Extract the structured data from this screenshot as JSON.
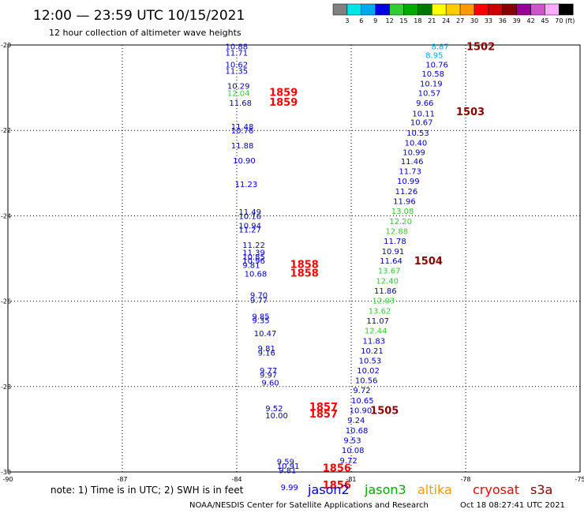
{
  "header": {
    "title": "12:00 — 23:59 UTC 10/15/2021",
    "subtitle": "12 hour collection of altimeter wave heights"
  },
  "colorbar": {
    "labels": [
      "3",
      "6",
      "9",
      "12",
      "15",
      "18",
      "21",
      "24",
      "27",
      "30",
      "33",
      "36",
      "39",
      "42",
      "45",
      "70"
    ],
    "unit": "(ft)",
    "colors": [
      "#808080",
      "#00e5e5",
      "#00a8f0",
      "#0000e0",
      "#33cc33",
      "#00aa00",
      "#007700",
      "#ffff00",
      "#ffcc00",
      "#ff9900",
      "#ff0000",
      "#cc0000",
      "#880000",
      "#990099",
      "#cc55cc",
      "#ffaaff",
      "#000000"
    ]
  },
  "footer": {
    "note": "note:  1) Time is in UTC;  2) SWH is in feet",
    "satellites": [
      {
        "name": "jason2",
        "color": "#0000cc"
      },
      {
        "name": "jason3",
        "color": "#00aa00"
      },
      {
        "name": "altika",
        "color": "#ff9900"
      },
      {
        "name": "cryosat",
        "color": "#ff0000"
      },
      {
        "name": "s3a",
        "color": "#880000"
      }
    ],
    "credit": "NOAA/NESDIS Center for Satellite Applications and Research",
    "timestamp": "Oct 18 08:27:41 UTC 2021"
  },
  "chart_data": {
    "type": "scatter",
    "xlim": [
      -90,
      -75
    ],
    "ylim": [
      -30,
      -20
    ],
    "xticks": [
      "-90",
      "-87",
      "-84",
      "-81",
      "-78",
      "-75"
    ],
    "yticks": [
      "-20",
      "-22",
      "-24",
      "-26",
      "-28",
      "-30"
    ],
    "grid": true,
    "colors": {
      "blue": "#0000cc",
      "green": "#33cc33",
      "cyan": "#00aaee",
      "red": "#ff0000",
      "maroon": "#880000"
    },
    "points": [
      {
        "lon": -84.3,
        "lat": -20.03,
        "v": "10.88",
        "c": "blue"
      },
      {
        "lon": -84.3,
        "lat": -20.18,
        "v": "11.71",
        "c": "blue"
      },
      {
        "lon": -84.3,
        "lat": -20.45,
        "v": "10.62",
        "c": "blue"
      },
      {
        "lon": -84.3,
        "lat": -20.6,
        "v": "11.35",
        "c": "blue"
      },
      {
        "lon": -84.25,
        "lat": -20.95,
        "v": "10.29",
        "c": "blue"
      },
      {
        "lon": -84.25,
        "lat": -21.12,
        "v": "12.04",
        "c": "green"
      },
      {
        "lon": -84.2,
        "lat": -21.35,
        "v": "11.68",
        "c": "blue"
      },
      {
        "lon": -84.15,
        "lat": -21.9,
        "v": "11.48",
        "c": "blue"
      },
      {
        "lon": -84.15,
        "lat": -22.0,
        "v": "10.76",
        "c": "blue"
      },
      {
        "lon": -84.15,
        "lat": -22.35,
        "v": "11.88",
        "c": "blue"
      },
      {
        "lon": -84.1,
        "lat": -22.7,
        "v": "10.90",
        "c": "blue"
      },
      {
        "lon": -84.05,
        "lat": -23.25,
        "v": "11.23",
        "c": "blue"
      },
      {
        "lon": -83.95,
        "lat": -23.9,
        "v": "11.49",
        "c": "blue"
      },
      {
        "lon": -83.95,
        "lat": -24.0,
        "v": "10.16",
        "c": "blue"
      },
      {
        "lon": -83.95,
        "lat": -24.22,
        "v": "10.94",
        "c": "blue"
      },
      {
        "lon": -83.95,
        "lat": -24.32,
        "v": "11.27",
        "c": "blue"
      },
      {
        "lon": -83.85,
        "lat": -24.68,
        "v": "11.22",
        "c": "blue"
      },
      {
        "lon": -83.85,
        "lat": -24.85,
        "v": "11.39",
        "c": "blue"
      },
      {
        "lon": -83.85,
        "lat": -24.95,
        "v": "10.85",
        "c": "blue"
      },
      {
        "lon": -83.85,
        "lat": -25.05,
        "v": "10.96",
        "c": "blue"
      },
      {
        "lon": -83.85,
        "lat": -25.15,
        "v": "9.81",
        "c": "blue"
      },
      {
        "lon": -83.8,
        "lat": -25.35,
        "v": "10.68",
        "c": "blue"
      },
      {
        "lon": -83.65,
        "lat": -25.85,
        "v": "9.70",
        "c": "blue"
      },
      {
        "lon": -83.65,
        "lat": -25.97,
        "v": "9.77",
        "c": "blue"
      },
      {
        "lon": -83.6,
        "lat": -26.35,
        "v": "9.85",
        "c": "blue"
      },
      {
        "lon": -83.6,
        "lat": -26.44,
        "v": "9.35",
        "c": "blue"
      },
      {
        "lon": -83.55,
        "lat": -26.75,
        "v": "10.47",
        "c": "blue"
      },
      {
        "lon": -83.45,
        "lat": -27.1,
        "v": "9.81",
        "c": "blue"
      },
      {
        "lon": -83.45,
        "lat": -27.2,
        "v": "9.16",
        "c": "blue"
      },
      {
        "lon": -83.4,
        "lat": -27.62,
        "v": "9.77",
        "c": "blue"
      },
      {
        "lon": -83.4,
        "lat": -27.72,
        "v": "9.97",
        "c": "blue"
      },
      {
        "lon": -83.35,
        "lat": -27.9,
        "v": "9.60",
        "c": "blue"
      },
      {
        "lon": -83.25,
        "lat": -28.5,
        "v": "9.52",
        "c": "blue"
      },
      {
        "lon": -83.25,
        "lat": -28.67,
        "v": "10.00",
        "c": "blue"
      },
      {
        "lon": -82.95,
        "lat": -29.75,
        "v": "9.59",
        "c": "blue"
      },
      {
        "lon": -82.95,
        "lat": -29.85,
        "v": "10.91",
        "c": "blue"
      },
      {
        "lon": -82.9,
        "lat": -29.95,
        "v": "9.81",
        "c": "blue"
      },
      {
        "lon": -82.85,
        "lat": -30.35,
        "v": "9.99",
        "c": "blue"
      },
      {
        "lon": -78.9,
        "lat": -20.03,
        "v": "8.87",
        "c": "cyan"
      },
      {
        "lon": -79.05,
        "lat": -20.23,
        "v": "8.95",
        "c": "cyan"
      },
      {
        "lon": -79.05,
        "lat": -20.45,
        "v": "10.76",
        "c": "blue"
      },
      {
        "lon": -79.15,
        "lat": -20.67,
        "v": "10.58",
        "c": "blue"
      },
      {
        "lon": -79.2,
        "lat": -20.9,
        "v": "10.19",
        "c": "blue"
      },
      {
        "lon": -79.25,
        "lat": -21.12,
        "v": "10.57",
        "c": "blue"
      },
      {
        "lon": -79.3,
        "lat": -21.35,
        "v": "9.66",
        "c": "blue"
      },
      {
        "lon": -79.4,
        "lat": -21.6,
        "v": "10.11",
        "c": "blue"
      },
      {
        "lon": -79.45,
        "lat": -21.8,
        "v": "10.67",
        "c": "blue"
      },
      {
        "lon": -79.55,
        "lat": -22.05,
        "v": "10.53",
        "c": "blue"
      },
      {
        "lon": -79.6,
        "lat": -22.28,
        "v": "10.40",
        "c": "blue"
      },
      {
        "lon": -79.65,
        "lat": -22.5,
        "v": "10.99",
        "c": "blue"
      },
      {
        "lon": -79.7,
        "lat": -22.72,
        "v": "11.46",
        "c": "blue"
      },
      {
        "lon": -79.75,
        "lat": -22.95,
        "v": "11.73",
        "c": "blue"
      },
      {
        "lon": -79.8,
        "lat": -23.18,
        "v": "10.99",
        "c": "blue"
      },
      {
        "lon": -79.85,
        "lat": -23.42,
        "v": "11.26",
        "c": "blue"
      },
      {
        "lon": -79.9,
        "lat": -23.65,
        "v": "11.96",
        "c": "blue"
      },
      {
        "lon": -79.95,
        "lat": -23.88,
        "v": "13.08",
        "c": "green"
      },
      {
        "lon": -80.0,
        "lat": -24.12,
        "v": "12.20",
        "c": "green"
      },
      {
        "lon": -80.1,
        "lat": -24.35,
        "v": "12.88",
        "c": "green"
      },
      {
        "lon": -80.15,
        "lat": -24.58,
        "v": "11.78",
        "c": "blue"
      },
      {
        "lon": -80.2,
        "lat": -24.82,
        "v": "10.91",
        "c": "blue"
      },
      {
        "lon": -80.25,
        "lat": -25.05,
        "v": "11.64",
        "c": "blue"
      },
      {
        "lon": -80.3,
        "lat": -25.28,
        "v": "13.67",
        "c": "green"
      },
      {
        "lon": -80.35,
        "lat": -25.52,
        "v": "12.40",
        "c": "green"
      },
      {
        "lon": -80.4,
        "lat": -25.75,
        "v": "11.86",
        "c": "blue"
      },
      {
        "lon": -80.45,
        "lat": -25.98,
        "v": "12.03",
        "c": "green"
      },
      {
        "lon": -80.55,
        "lat": -26.22,
        "v": "13.62",
        "c": "green"
      },
      {
        "lon": -80.6,
        "lat": -26.45,
        "v": "11.07",
        "c": "blue"
      },
      {
        "lon": -80.65,
        "lat": -26.68,
        "v": "12.44",
        "c": "green"
      },
      {
        "lon": -80.7,
        "lat": -26.92,
        "v": "11.83",
        "c": "blue"
      },
      {
        "lon": -80.75,
        "lat": -27.15,
        "v": "10.21",
        "c": "blue"
      },
      {
        "lon": -80.8,
        "lat": -27.38,
        "v": "10.53",
        "c": "blue"
      },
      {
        "lon": -80.85,
        "lat": -27.62,
        "v": "10.02",
        "c": "blue"
      },
      {
        "lon": -80.9,
        "lat": -27.85,
        "v": "10.56",
        "c": "blue"
      },
      {
        "lon": -80.95,
        "lat": -28.08,
        "v": "9.72",
        "c": "blue"
      },
      {
        "lon": -81.0,
        "lat": -28.32,
        "v": "10.65",
        "c": "blue"
      },
      {
        "lon": -81.05,
        "lat": -28.55,
        "v": "10.90",
        "c": "blue"
      },
      {
        "lon": -81.1,
        "lat": -28.78,
        "v": "9.24",
        "c": "blue"
      },
      {
        "lon": -81.15,
        "lat": -29.02,
        "v": "10.68",
        "c": "blue"
      },
      {
        "lon": -81.2,
        "lat": -29.25,
        "v": "9.53",
        "c": "blue"
      },
      {
        "lon": -81.25,
        "lat": -29.48,
        "v": "10.08",
        "c": "blue"
      },
      {
        "lon": -81.3,
        "lat": -29.72,
        "v": "9.72",
        "c": "blue"
      }
    ],
    "pass_labels": [
      {
        "lon": -83.15,
        "lat": -21.1,
        "v": "1859",
        "c": "red"
      },
      {
        "lon": -83.15,
        "lat": -21.33,
        "v": "1859",
        "c": "red"
      },
      {
        "lon": -82.6,
        "lat": -25.13,
        "v": "1858",
        "c": "red"
      },
      {
        "lon": -82.6,
        "lat": -25.33,
        "v": "1858",
        "c": "red"
      },
      {
        "lon": -82.1,
        "lat": -28.47,
        "v": "1857",
        "c": "red"
      },
      {
        "lon": -82.1,
        "lat": -28.63,
        "v": "1857",
        "c": "red"
      },
      {
        "lon": -81.75,
        "lat": -29.9,
        "v": "1856",
        "c": "red"
      },
      {
        "lon": -81.75,
        "lat": -30.3,
        "v": "1856",
        "c": "red"
      },
      {
        "lon": -77.98,
        "lat": -20.03,
        "v": "1502",
        "c": "maroon"
      },
      {
        "lon": -78.25,
        "lat": -21.55,
        "v": "1503",
        "c": "maroon"
      },
      {
        "lon": -79.35,
        "lat": -25.05,
        "v": "1504",
        "c": "maroon"
      },
      {
        "lon": -80.5,
        "lat": -28.55,
        "v": "1505",
        "c": "maroon"
      }
    ]
  }
}
